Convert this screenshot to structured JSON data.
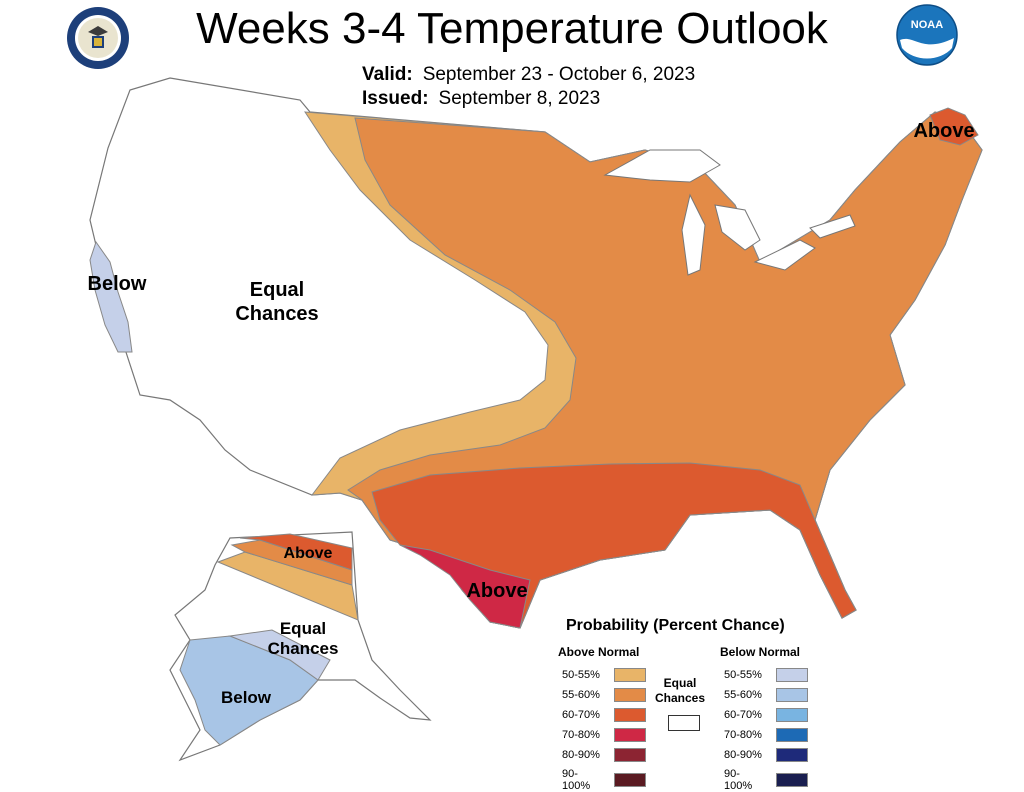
{
  "header": {
    "title": "Weeks 3-4 Temperature Outlook",
    "valid_label": "Valid:",
    "valid_value": "September 23 - October 6, 2023",
    "issued_label": "Issued:",
    "issued_value": "September 8, 2023"
  },
  "logos": {
    "left": "doc-seal-icon",
    "right": "noaa-logo-icon",
    "noaa_text": "NOAA"
  },
  "map_labels": {
    "below_west": "Below",
    "equal_chances": [
      "Equal",
      "Chances"
    ],
    "above_northeast": "Above",
    "above_texas": "Above",
    "ak_above": "Above",
    "ak_equal": [
      "Equal",
      "Chances"
    ],
    "ak_below": "Below"
  },
  "colors": {
    "above_50_55": "#E8B468",
    "above_55_60": "#E38B47",
    "above_60_70": "#DC5A2F",
    "above_70_80": "#CF2845",
    "above_80_90": "#8C2432",
    "above_90_100": "#5A1A22",
    "below_50_55": "#C5D0E9",
    "below_55_60": "#A8C5E6",
    "below_60_70": "#79B4E1",
    "below_70_80": "#1D6AB5",
    "below_80_90": "#1E2A7A",
    "below_90_100": "#1A1F50",
    "equal": "#FFFFFF"
  },
  "legend": {
    "title": "Probability (Percent Chance)",
    "above_head": "Above Normal",
    "below_head": "Below Normal",
    "equal_label": [
      "Equal",
      "Chances"
    ],
    "rows": [
      "50-55%",
      "55-60%",
      "60-70%",
      "70-80%",
      "80-90%",
      "90-100%"
    ]
  }
}
